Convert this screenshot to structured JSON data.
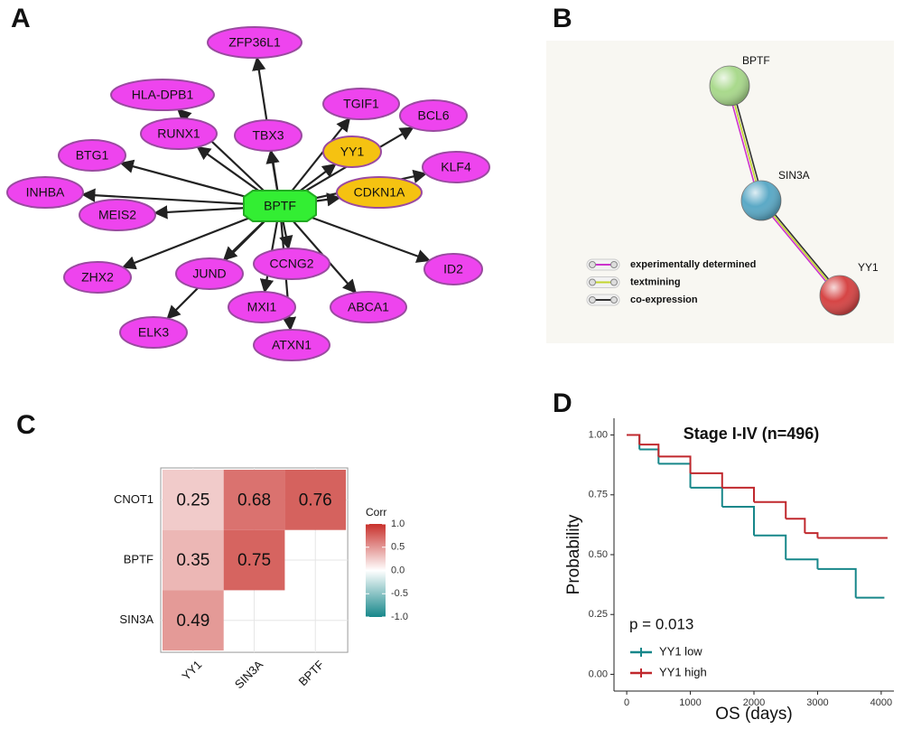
{
  "chart_data": [
    {
      "type": "network",
      "panel": "A",
      "nodes": [
        {
          "label": "BPTF",
          "color": "#33ee33"
        },
        {
          "label": "ZFP36L1",
          "color": "#ee44ee"
        },
        {
          "label": "HLA-DPB1",
          "color": "#ee44ee"
        },
        {
          "label": "RUNX1",
          "color": "#ee44ee"
        },
        {
          "label": "TBX3",
          "color": "#ee44ee"
        },
        {
          "label": "TGIF1",
          "color": "#ee44ee"
        },
        {
          "label": "BCL6",
          "color": "#ee44ee"
        },
        {
          "label": "YY1",
          "color": "#f5c211"
        },
        {
          "label": "KLF4",
          "color": "#ee44ee"
        },
        {
          "label": "CDKN1A",
          "color": "#f5c211"
        },
        {
          "label": "BTG1",
          "color": "#ee44ee"
        },
        {
          "label": "INHBA",
          "color": "#ee44ee"
        },
        {
          "label": "MEIS2",
          "color": "#ee44ee"
        },
        {
          "label": "ZHX2",
          "color": "#ee44ee"
        },
        {
          "label": "JUND",
          "color": "#ee44ee"
        },
        {
          "label": "CCNG2",
          "color": "#ee44ee"
        },
        {
          "label": "ID2",
          "color": "#ee44ee"
        },
        {
          "label": "MXI1",
          "color": "#ee44ee"
        },
        {
          "label": "ABCA1",
          "color": "#ee44ee"
        },
        {
          "label": "ELK3",
          "color": "#ee44ee"
        },
        {
          "label": "ATXN1",
          "color": "#ee44ee"
        }
      ]
    },
    {
      "type": "network",
      "panel": "B",
      "nodes": [
        {
          "label": "BPTF",
          "color": "#a9d98c"
        },
        {
          "label": "SIN3A",
          "color": "#5ba9c6"
        },
        {
          "label": "YY1",
          "color": "#d64545"
        }
      ],
      "legend": [
        {
          "label": "experimentally determined",
          "color": "#cc33cc"
        },
        {
          "label": "textmining",
          "color": "#c3d52e"
        },
        {
          "label": "co-expression",
          "color": "#333333"
        }
      ]
    },
    {
      "type": "heatmap",
      "panel": "C",
      "rows": [
        "CNOT1",
        "BPTF",
        "SIN3A"
      ],
      "columns": [
        "YY1",
        "SIN3A",
        "BPTF"
      ],
      "values": [
        [
          0.25,
          0.68,
          0.76
        ],
        [
          0.35,
          0.75,
          null
        ],
        [
          0.49,
          null,
          null
        ]
      ],
      "legend_title": "Corr",
      "colors": [
        "#17878a",
        "#ffffff",
        "#c8302b"
      ],
      "colorbar_lim": [
        -1,
        1
      ],
      "colorbar_ticks": [
        {
          "value": 1,
          "label": "1.0"
        },
        {
          "value": 0.5,
          "label": "0.5"
        },
        {
          "value": 0,
          "label": "0.0"
        },
        {
          "value": -0.5,
          "label": "-0.5"
        },
        {
          "value": -1,
          "label": "-1.0"
        }
      ]
    },
    {
      "type": "step",
      "panel": "D",
      "title": "Stage I-IV (n=496)",
      "xlabel": "OS (days)",
      "ylabel": "Probability",
      "annotation": "p = 0.013",
      "xlim": [
        -200,
        4200
      ],
      "ylim": [
        -0.07,
        1.07
      ],
      "xticks": [
        0,
        1000,
        2000,
        3000,
        4000
      ],
      "yticks": [
        {
          "value": 0,
          "label": "0.00"
        },
        {
          "value": 0.25,
          "label": "0.25"
        },
        {
          "value": 0.5,
          "label": "0.50"
        },
        {
          "value": 0.75,
          "label": "0.75"
        },
        {
          "value": 1,
          "label": "1.00"
        }
      ],
      "series": [
        {
          "name": "YY1 low",
          "color": "#17878a",
          "x": [
            0,
            200,
            500,
            1000,
            1500,
            2000,
            2500,
            3000,
            3600,
            4050
          ],
          "values": [
            1,
            0.94,
            0.88,
            0.78,
            0.7,
            0.58,
            0.48,
            0.44,
            0.32,
            0.32
          ]
        },
        {
          "name": "YY1 high",
          "color": "#c0282d",
          "x": [
            0,
            200,
            500,
            1000,
            1500,
            2000,
            2500,
            2800,
            3000,
            4100
          ],
          "values": [
            1,
            0.96,
            0.91,
            0.84,
            0.78,
            0.72,
            0.65,
            0.59,
            0.57,
            0.57
          ]
        }
      ]
    }
  ]
}
